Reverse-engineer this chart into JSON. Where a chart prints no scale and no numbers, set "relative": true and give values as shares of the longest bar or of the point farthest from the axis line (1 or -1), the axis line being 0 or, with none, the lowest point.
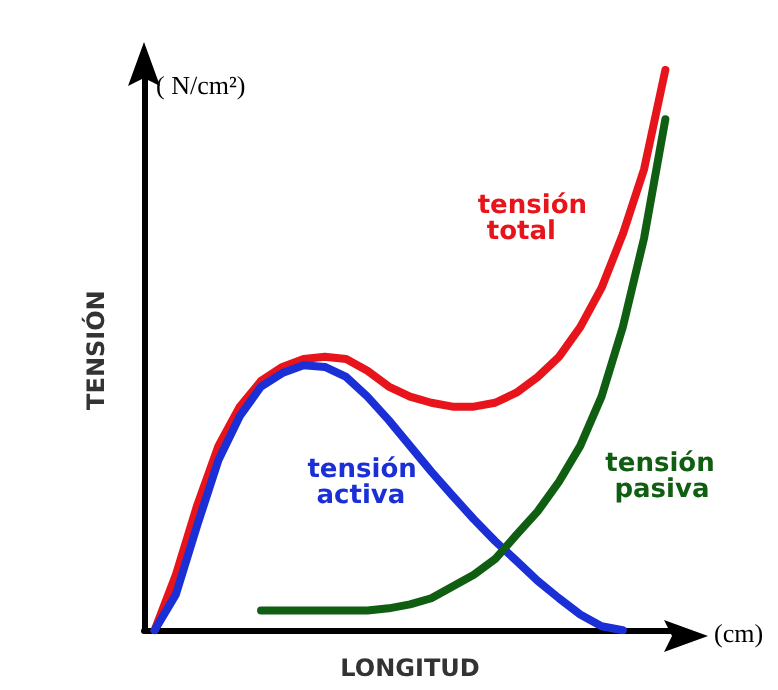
{
  "chart_data": {
    "type": "line",
    "relative": true,
    "xlabel": "LONGITUD",
    "ylabel": "TENSIÓN",
    "annotations": [
      "( N/cm²)",
      "(cm)"
    ],
    "legend": false,
    "grid": false,
    "marker": "none",
    "line_style": "solid",
    "categories": [
      null,
      null,
      null,
      null,
      null,
      null,
      null,
      null,
      null,
      null,
      null,
      null,
      null,
      null,
      null,
      null,
      null,
      null,
      null,
      null,
      null,
      null,
      null,
      null,
      null
    ],
    "series": [
      {
        "name": "tensión total",
        "color": "#e8141b",
        "values": [
          0,
          0.099,
          0.223,
          0.329,
          0.399,
          0.445,
          0.47,
          0.484,
          0.488,
          0.484,
          0.463,
          0.435,
          0.417,
          0.406,
          0.399,
          0.399,
          0.406,
          0.424,
          0.452,
          0.488,
          0.541,
          0.611,
          0.707,
          0.823,
          1
        ]
      },
      {
        "name": "tensión activa",
        "color": "#1b2fd6",
        "values": [
          0,
          0.064,
          0.187,
          0.304,
          0.382,
          0.435,
          0.459,
          0.473,
          0.47,
          0.452,
          0.417,
          0.375,
          0.329,
          0.283,
          0.24,
          0.198,
          0.159,
          0.124,
          0.088,
          0.057,
          0.028,
          0.007,
          0,
          null,
          null
        ]
      },
      {
        "name": "tensión pasiva",
        "color": "#0f5e12",
        "values": [
          null,
          null,
          null,
          null,
          null,
          0.035,
          0.035,
          0.035,
          0.035,
          0.035,
          0.035,
          0.039,
          0.046,
          0.057,
          0.078,
          0.099,
          0.127,
          0.17,
          0.212,
          0.265,
          0.329,
          0.417,
          0.541,
          0.7,
          0.912
        ]
      }
    ]
  }
}
